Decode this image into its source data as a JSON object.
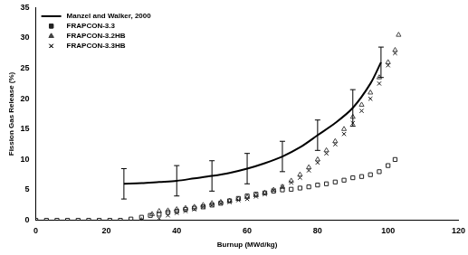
{
  "chart_data": {
    "type": "scatter",
    "x_label": "Burnup (MWd/kg)",
    "y_label": "Fission Gas Release (%)",
    "xlim": [
      0,
      120
    ],
    "xticks": [
      0,
      20,
      40,
      60,
      80,
      100,
      120
    ],
    "ylim": [
      0,
      35
    ],
    "yticks": [
      0,
      5,
      10,
      15,
      20,
      25,
      30,
      35
    ],
    "grid": false,
    "legend": "upper left",
    "series": [
      {
        "name": "Manzel and Walker, 2000",
        "type": "line",
        "color": "#000000",
        "marker": "none",
        "line_style": "solid",
        "x": [
          25,
          30,
          35,
          40,
          45,
          50,
          55,
          60,
          65,
          70,
          75,
          80,
          85,
          90,
          95,
          98
        ],
        "values": [
          6,
          6.1,
          6.3,
          6.5,
          6.9,
          7.3,
          7.8,
          8.5,
          9.4,
          10.5,
          12,
          14,
          16,
          18.5,
          22.5,
          26
        ],
        "errors": [
          2.5,
          null,
          null,
          2.5,
          null,
          2.5,
          null,
          2.5,
          null,
          2.5,
          null,
          2.5,
          null,
          3,
          null,
          2.5
        ]
      },
      {
        "name": "FRAPCON-3.3",
        "type": "scatter",
        "color": "#222222",
        "marker": "square",
        "x": [
          0,
          3,
          6,
          9,
          12,
          15,
          18,
          21,
          24,
          27,
          30,
          32.5,
          35,
          37.5,
          40,
          42.5,
          45,
          47.5,
          50,
          52.5,
          55,
          57.5,
          60,
          62.5,
          65,
          67.5,
          70,
          72.5,
          75,
          77.5,
          80,
          82.5,
          85,
          87.5,
          90,
          92.5,
          95,
          97.5,
          100,
          102
        ],
        "values": [
          0,
          0,
          0,
          0,
          0,
          0,
          0,
          0,
          0,
          0.2,
          0.5,
          0.8,
          1,
          1.3,
          1.5,
          1.8,
          2,
          2.2,
          2.5,
          2.8,
          3.2,
          3.6,
          4,
          4.3,
          4.5,
          4.8,
          5,
          5.1,
          5.3,
          5.5,
          5.8,
          6,
          6.3,
          6.6,
          7,
          7.2,
          7.5,
          8,
          9,
          10
        ]
      },
      {
        "name": "FRAPCON-3.2HB",
        "type": "scatter",
        "color": "#444444",
        "marker": "triangle",
        "x": [
          30,
          33,
          35,
          37.5,
          40,
          42.5,
          45,
          47.5,
          50,
          52.5,
          55,
          57.5,
          60,
          62.5,
          65,
          67.5,
          70,
          72.5,
          75,
          77.5,
          80,
          82.5,
          85,
          87.5,
          90,
          92.5,
          95,
          97.5,
          100,
          102,
          103
        ],
        "values": [
          0,
          1,
          1.5,
          1.6,
          1.8,
          2,
          2.2,
          2.5,
          2.8,
          3,
          3.2,
          3.5,
          3.8,
          4.1,
          4.5,
          5,
          5.5,
          6.5,
          7.5,
          8.7,
          10,
          11.5,
          13,
          15,
          17,
          19,
          21,
          23.5,
          26,
          28,
          30.5
        ]
      },
      {
        "name": "FRAPCON-3.3HB",
        "type": "scatter",
        "color": "#111111",
        "marker": "x",
        "x": [
          35,
          37.5,
          40,
          42.5,
          45,
          47.5,
          50,
          52.5,
          55,
          57.5,
          60,
          62.5,
          65,
          67.5,
          70,
          72.5,
          75,
          77.5,
          80,
          82.5,
          85,
          87.5,
          90,
          92.5,
          95,
          97.5,
          100,
          102
        ],
        "values": [
          0.3,
          0.8,
          1.2,
          1.5,
          1.8,
          2.2,
          2.5,
          2.8,
          3,
          3.3,
          3.5,
          3.9,
          4.3,
          4.9,
          5.5,
          6.2,
          7,
          8.2,
          9.5,
          11,
          12.5,
          14.2,
          16,
          18,
          20,
          22.5,
          25.5,
          27.5
        ]
      }
    ]
  }
}
